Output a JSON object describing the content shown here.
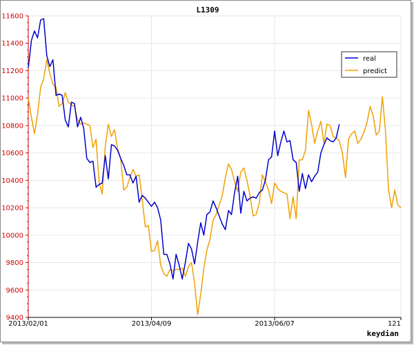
{
  "colors": {
    "real": "#0000cc",
    "predict": "#f0a000",
    "y_axis": "#cc0000",
    "grid": "#e6e6e6",
    "border": "#8a8a8a"
  },
  "chart_data": {
    "type": "line",
    "title": "L1309",
    "corner_label": "keydian",
    "grid": true,
    "legend_position": "top-right",
    "ylim": [
      9400,
      11600
    ],
    "yticks": [
      9400,
      9600,
      9800,
      10000,
      10200,
      10400,
      10600,
      10800,
      11000,
      11200,
      11400,
      11600
    ],
    "xlim": [
      0,
      121
    ],
    "x_tick_labels": [
      {
        "x": 0,
        "label": "2013/02/01"
      },
      {
        "x": 40,
        "label": "2013/04/09"
      },
      {
        "x": 80,
        "label": "2013/06/07"
      },
      {
        "x": 121,
        "label": "121"
      }
    ],
    "series": [
      {
        "name": "real",
        "color": "#0000cc",
        "values": [
          11220,
          11420,
          11490,
          11440,
          11570,
          11580,
          11310,
          11230,
          11280,
          11020,
          11030,
          11020,
          10840,
          10790,
          10970,
          10960,
          10790,
          10860,
          10780,
          10560,
          10530,
          10540,
          10350,
          10370,
          10380,
          10580,
          10410,
          10660,
          10650,
          10620,
          10560,
          10510,
          10440,
          10440,
          10380,
          10430,
          10240,
          10290,
          10270,
          10240,
          10210,
          10240,
          10200,
          10110,
          9860,
          9860,
          9790,
          9680,
          9860,
          9780,
          9680,
          9800,
          9940,
          9900,
          9790,
          9950,
          10090,
          10000,
          10150,
          10170,
          10250,
          10200,
          10140,
          10080,
          10040,
          10180,
          10150,
          10310,
          10430,
          10160,
          10320,
          10250,
          10270,
          10280,
          10270,
          10310,
          10330,
          10400,
          10550,
          10570,
          10760,
          10580,
          10680,
          10760,
          10680,
          10690,
          10550,
          10530,
          10320,
          10450,
          10340,
          10440,
          10390,
          10430,
          10460,
          10600,
          10660,
          10710,
          10690,
          10680,
          10710,
          10810
        ]
      },
      {
        "name": "predict",
        "color": "#f0a000",
        "values": [
          11000,
          10860,
          10740,
          10880,
          11080,
          11140,
          11280,
          11180,
          11100,
          11080,
          10940,
          10960,
          11040,
          10970,
          10950,
          10940,
          10840,
          10810,
          10820,
          10810,
          10800,
          10640,
          10700,
          10390,
          10300,
          10650,
          10810,
          10720,
          10770,
          10630,
          10560,
          10330,
          10350,
          10420,
          10480,
          10430,
          10440,
          10260,
          10060,
          10070,
          9880,
          9890,
          9960,
          9780,
          9720,
          9700,
          9750,
          9740,
          9750,
          9750,
          9760,
          9700,
          9770,
          9800,
          9650,
          9420,
          9570,
          9760,
          9890,
          9970,
          10110,
          10150,
          10220,
          10290,
          10420,
          10520,
          10480,
          10390,
          10320,
          10460,
          10490,
          10400,
          10290,
          10140,
          10150,
          10230,
          10440,
          10390,
          10330,
          10230,
          10380,
          10340,
          10320,
          10310,
          10300,
          10120,
          10280,
          10120,
          10550,
          10550,
          10620,
          10910,
          10810,
          10670,
          10760,
          10830,
          10670,
          10810,
          10800,
          10720,
          10710,
          10690,
          10600,
          10420,
          10700,
          10740,
          10760,
          10670,
          10700,
          10750,
          10820,
          10940,
          10870,
          10730,
          10760,
          11010,
          10760,
          10330,
          10200,
          10330,
          10220,
          10200
        ]
      }
    ]
  }
}
